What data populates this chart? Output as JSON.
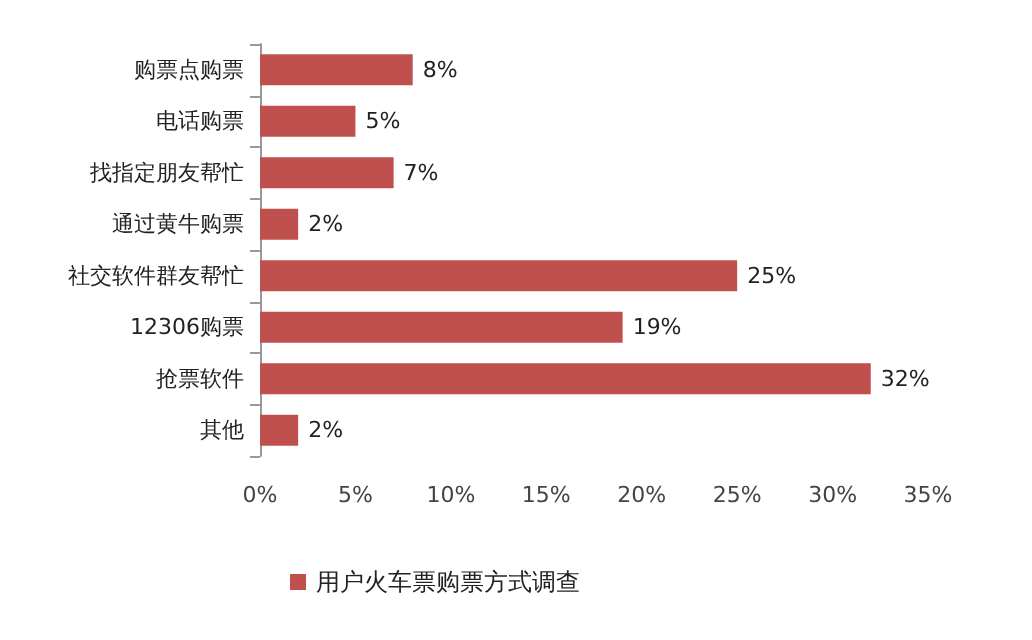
{
  "chart_data": {
    "type": "bar",
    "orientation": "horizontal",
    "categories": [
      "购票点购票",
      "电话购票",
      "找指定朋友帮忙",
      "通过黄牛购票",
      "社交软件群友帮忙",
      "12306购票",
      "抢票软件",
      "其他"
    ],
    "series": [
      {
        "name": "用户火车票购票方式调查",
        "color": "#c0504d",
        "values": [
          8,
          5,
          7,
          2,
          25,
          19,
          32,
          2
        ],
        "value_labels": [
          "8%",
          "5%",
          "7%",
          "2%",
          "25%",
          "19%",
          "32%",
          "2%"
        ]
      }
    ],
    "xlim": [
      0,
      35
    ],
    "xticks": [
      {
        "value": 0,
        "label": "0%"
      },
      {
        "value": 5,
        "label": "5%"
      },
      {
        "value": 10,
        "label": "10%"
      },
      {
        "value": 15,
        "label": "15%"
      },
      {
        "value": 20,
        "label": "20%"
      },
      {
        "value": 25,
        "label": "25%"
      },
      {
        "value": 30,
        "label": "30%"
      },
      {
        "value": 35,
        "label": "35%"
      }
    ],
    "grid": false,
    "legend": "bottom"
  }
}
